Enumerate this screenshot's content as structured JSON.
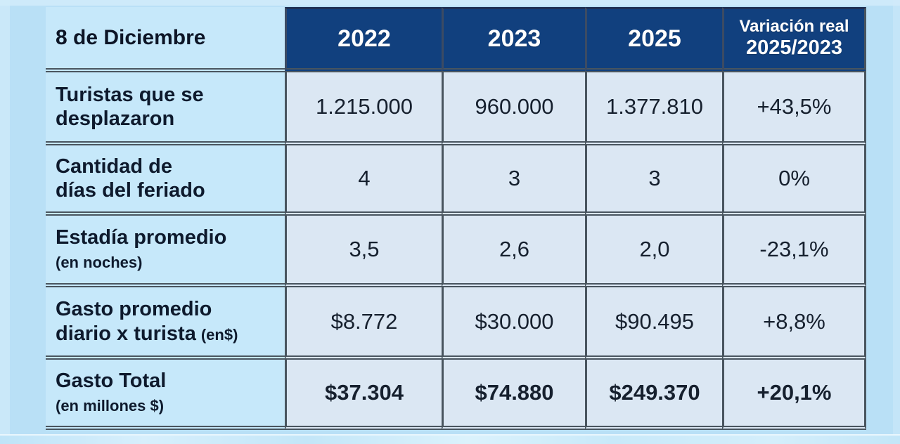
{
  "page": {
    "background": "#b9e0f6"
  },
  "table": {
    "corner_header": "8 de Diciembre",
    "year_headers": [
      "2022",
      "2023",
      "2025"
    ],
    "variation_header": {
      "line1": "Variación real",
      "line2": "2025/2023"
    },
    "rows": [
      {
        "label_line1": "Turistas que se",
        "label_line2": "desplazaron",
        "label_small": "",
        "values": [
          "1.215.000",
          "960.000",
          "1.377.810",
          "+43,5%"
        ]
      },
      {
        "label_line1": "Cantidad de",
        "label_line2": "días del feriado",
        "label_small": "",
        "values": [
          "4",
          "3",
          "3",
          "0%"
        ]
      },
      {
        "label_line1": "Estadía promedio",
        "label_line2": "",
        "label_small": "(en noches)",
        "values": [
          "3,5",
          "2,6",
          "2,0",
          "-23,1%"
        ]
      },
      {
        "label_line1": "Gasto promedio",
        "label_line2": "diario x turista",
        "label_small": "(en$)",
        "values": [
          "$8.772",
          "$30.000",
          "$90.495",
          "+8,8%"
        ]
      },
      {
        "label_line1": "Gasto Total",
        "label_line2": "",
        "label_small": "(en millones $)",
        "values": [
          "$37.304",
          "$74.880",
          "$249.370",
          "+20,1%"
        ]
      }
    ]
  },
  "chart_data": {
    "type": "table",
    "title": "8 de Diciembre",
    "columns": [
      "8 de Diciembre",
      "2022",
      "2023",
      "2025",
      "Variación real 2025/2023"
    ],
    "rows": [
      [
        "Turistas que se desplazaron",
        "1.215.000",
        "960.000",
        "1.377.810",
        "+43,5%"
      ],
      [
        "Cantidad de días del feriado",
        "4",
        "3",
        "3",
        "0%"
      ],
      [
        "Estadía promedio (en noches)",
        "3,5",
        "2,6",
        "2,0",
        "-23,1%"
      ],
      [
        "Gasto promedio diario x turista (en$)",
        "$8.772",
        "$30.000",
        "$90.495",
        "+8,8%"
      ],
      [
        "Gasto Total (en millones $)",
        "$37.304",
        "$74.880",
        "$249.370",
        "+20,1%"
      ]
    ]
  },
  "colors": {
    "header_bg": "#11407e",
    "header_text": "#ffffff",
    "label_bg": "#c6e8fa",
    "cell_bg": "#dbe7f3",
    "page_bg": "#b9e0f6",
    "border": "#49555f",
    "text": "#16202e"
  }
}
